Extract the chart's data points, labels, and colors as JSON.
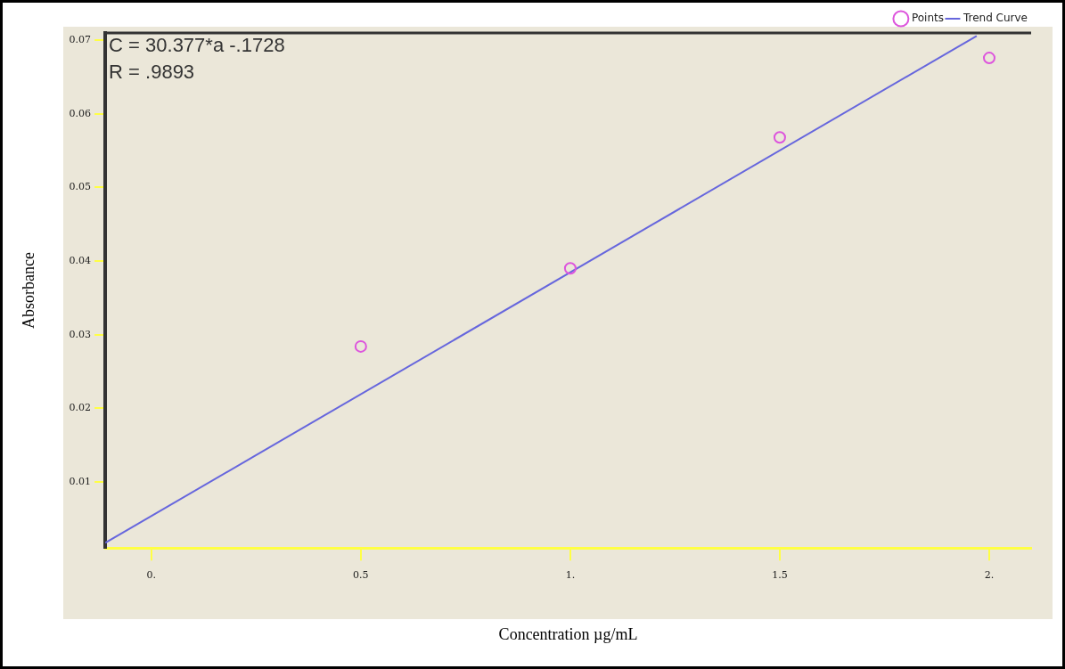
{
  "chart_data": {
    "type": "scatter",
    "xlabel": "Concentration µg/mL",
    "ylabel": "Absorbance",
    "annotations": [
      "C = 30.377*a -.1728",
      "R = .9893"
    ],
    "xlim": [
      -0.11,
      2.1
    ],
    "ylim": [
      0.001,
      0.071
    ],
    "xticks": [
      {
        "value": 0,
        "label": "0."
      },
      0.5,
      {
        "value": 1,
        "label": "1."
      },
      1.5,
      {
        "value": 2,
        "label": "2."
      }
    ],
    "yticks": [
      0.01,
      0.02,
      0.03,
      0.04,
      0.05,
      0.06,
      0.07
    ],
    "legend": "top right",
    "series": [
      {
        "name": "Points",
        "marker": "circle",
        "color": "#dd55dd",
        "x": [
          0.5,
          1,
          1.5,
          2
        ],
        "values": [
          0.0284,
          0.039,
          0.0568,
          0.0676
        ]
      },
      {
        "name": "Trend Curve",
        "type": "line",
        "marker": "none",
        "color": "#6666dd",
        "x": [
          -0.11,
          1.97
        ],
        "values": [
          0.0017,
          0.0706
        ]
      }
    ]
  }
}
